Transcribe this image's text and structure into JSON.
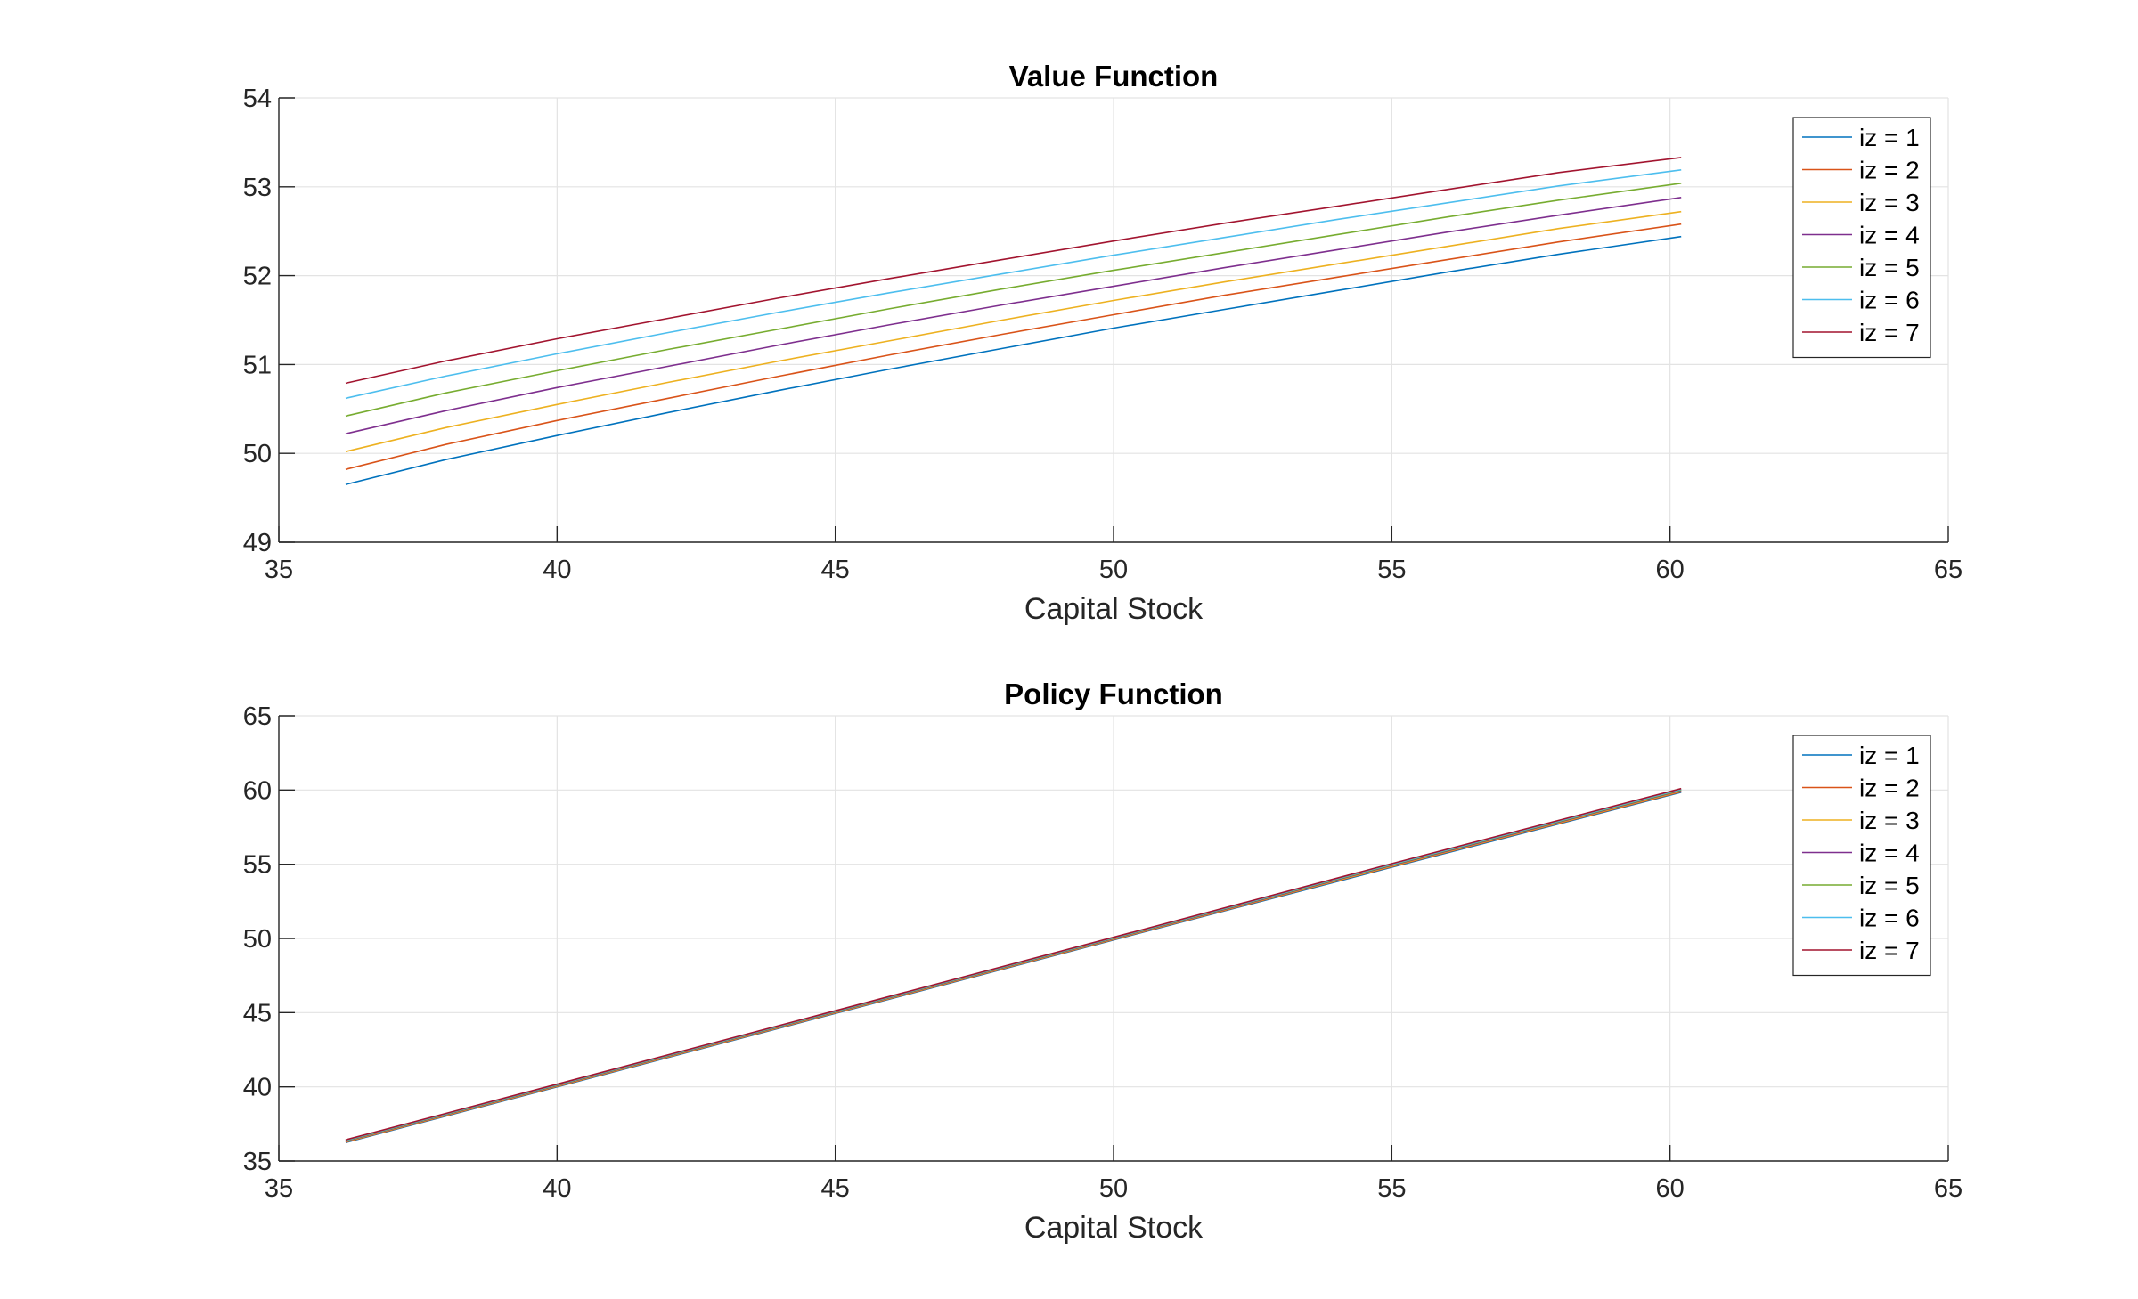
{
  "chart_data": [
    {
      "type": "line",
      "title": "Value Function",
      "xlabel": "Capital Stock",
      "ylabel": "",
      "xlim": [
        35,
        65
      ],
      "ylim": [
        49,
        54
      ],
      "xticks": [
        35,
        40,
        45,
        50,
        55,
        60,
        65
      ],
      "yticks": [
        49,
        50,
        51,
        52,
        53,
        54
      ],
      "xtick_labels": [
        "35",
        "40",
        "45",
        "50",
        "55",
        "60",
        "65"
      ],
      "ytick_labels": [
        "49",
        "50",
        "51",
        "52",
        "53",
        "54"
      ],
      "grid": true,
      "legend_position": "top-right",
      "x": [
        36.2,
        38,
        40,
        42,
        44,
        46,
        48,
        50,
        52,
        54,
        56,
        58,
        60.2
      ],
      "series": [
        {
          "name": "iz = 1",
          "color": "#0072BD",
          "values": [
            49.65,
            49.93,
            50.2,
            50.46,
            50.71,
            50.95,
            51.18,
            51.41,
            51.62,
            51.83,
            52.04,
            52.24,
            52.44
          ]
        },
        {
          "name": "iz = 2",
          "color": "#D95319",
          "values": [
            49.82,
            50.1,
            50.37,
            50.62,
            50.87,
            51.11,
            51.34,
            51.56,
            51.78,
            51.98,
            52.18,
            52.38,
            52.58
          ]
        },
        {
          "name": "iz = 3",
          "color": "#EDB120",
          "values": [
            50.02,
            50.29,
            50.55,
            50.8,
            51.04,
            51.27,
            51.5,
            51.72,
            51.93,
            52.13,
            52.33,
            52.53,
            52.72
          ]
        },
        {
          "name": "iz = 4",
          "color": "#7E2F8E",
          "values": [
            50.22,
            50.48,
            50.74,
            50.98,
            51.22,
            51.45,
            51.67,
            51.88,
            52.09,
            52.29,
            52.49,
            52.68,
            52.88
          ]
        },
        {
          "name": "iz = 5",
          "color": "#77AC30",
          "values": [
            50.42,
            50.68,
            50.93,
            51.17,
            51.4,
            51.63,
            51.85,
            52.06,
            52.26,
            52.46,
            52.66,
            52.85,
            53.04
          ]
        },
        {
          "name": "iz = 6",
          "color": "#4DBEEE",
          "values": [
            50.62,
            50.87,
            51.12,
            51.36,
            51.59,
            51.81,
            52.02,
            52.23,
            52.43,
            52.63,
            52.82,
            53.01,
            53.19
          ]
        },
        {
          "name": "iz = 7",
          "color": "#A2142F",
          "values": [
            50.79,
            51.04,
            51.29,
            51.52,
            51.75,
            51.97,
            52.18,
            52.39,
            52.59,
            52.78,
            52.97,
            53.16,
            53.33
          ]
        }
      ]
    },
    {
      "type": "line",
      "title": "Policy Function",
      "xlabel": "Capital Stock",
      "ylabel": "",
      "xlim": [
        35,
        65
      ],
      "ylim": [
        35,
        65
      ],
      "xticks": [
        35,
        40,
        45,
        50,
        55,
        60,
        65
      ],
      "yticks": [
        35,
        40,
        45,
        50,
        55,
        60,
        65
      ],
      "xtick_labels": [
        "35",
        "40",
        "45",
        "50",
        "55",
        "60",
        "65"
      ],
      "ytick_labels": [
        "35",
        "40",
        "45",
        "50",
        "55",
        "60",
        "65"
      ],
      "grid": true,
      "legend_position": "top-right",
      "x": [
        36.2,
        40,
        45,
        50,
        55,
        60.2
      ],
      "series": [
        {
          "name": "iz = 1",
          "color": "#0072BD",
          "values": [
            36.25,
            40.0,
            44.95,
            49.9,
            54.8,
            59.85
          ]
        },
        {
          "name": "iz = 2",
          "color": "#D95319",
          "values": [
            36.28,
            40.03,
            44.98,
            49.93,
            54.84,
            59.89
          ]
        },
        {
          "name": "iz = 3",
          "color": "#EDB120",
          "values": [
            36.31,
            40.06,
            45.01,
            49.96,
            54.88,
            59.93
          ]
        },
        {
          "name": "iz = 4",
          "color": "#7E2F8E",
          "values": [
            36.34,
            40.09,
            45.04,
            49.99,
            54.92,
            59.97
          ]
        },
        {
          "name": "iz = 5",
          "color": "#77AC30",
          "values": [
            36.37,
            40.12,
            45.07,
            50.02,
            54.96,
            60.01
          ]
        },
        {
          "name": "iz = 6",
          "color": "#4DBEEE",
          "values": [
            36.4,
            40.15,
            45.1,
            50.05,
            55.0,
            60.05
          ]
        },
        {
          "name": "iz = 7",
          "color": "#A2142F",
          "values": [
            36.43,
            40.18,
            45.13,
            50.08,
            55.04,
            60.1
          ]
        }
      ]
    }
  ]
}
